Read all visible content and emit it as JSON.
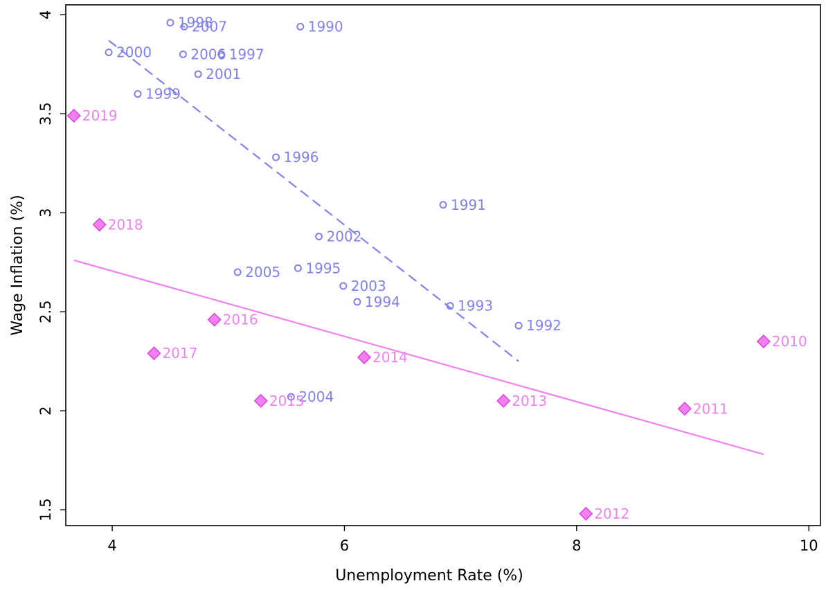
{
  "chart_data": {
    "type": "scatter",
    "title": "",
    "xlabel": "Unemployment Rate (%)",
    "ylabel": "Wage Inflation (%)",
    "xlim": [
      3.6,
      10.1
    ],
    "ylim": [
      1.42,
      4.05
    ],
    "xticks": [
      "4",
      "6",
      "8",
      "10"
    ],
    "yticks": [
      "1.5",
      "2",
      "2.5",
      "3",
      "3.5",
      "4"
    ],
    "grid": false,
    "legend": "none",
    "series": [
      {
        "marker": "circle",
        "color": "#8080f0",
        "points": [
          {
            "label": "1990",
            "x": 5.62,
            "y": 3.94
          },
          {
            "label": "1991",
            "x": 6.85,
            "y": 3.04
          },
          {
            "label": "1992",
            "x": 7.5,
            "y": 2.43
          },
          {
            "label": "1993",
            "x": 6.91,
            "y": 2.53
          },
          {
            "label": "1994",
            "x": 6.11,
            "y": 2.55
          },
          {
            "label": "1995",
            "x": 5.6,
            "y": 2.72
          },
          {
            "label": "1996",
            "x": 5.41,
            "y": 3.28
          },
          {
            "label": "1997",
            "x": 4.94,
            "y": 3.8
          },
          {
            "label": "1998",
            "x": 4.5,
            "y": 3.96
          },
          {
            "label": "1999",
            "x": 4.22,
            "y": 3.6
          },
          {
            "label": "2000",
            "x": 3.97,
            "y": 3.81
          },
          {
            "label": "2001",
            "x": 4.74,
            "y": 3.7
          },
          {
            "label": "2002",
            "x": 5.78,
            "y": 2.88
          },
          {
            "label": "2003",
            "x": 5.99,
            "y": 2.63
          },
          {
            "label": "2004",
            "x": 5.54,
            "y": 2.07
          },
          {
            "label": "2005",
            "x": 5.08,
            "y": 2.7
          },
          {
            "label": "2006",
            "x": 4.61,
            "y": 3.8
          },
          {
            "label": "2007",
            "x": 4.62,
            "y": 3.94
          }
        ],
        "trendline": {
          "style": "dashed",
          "x": [
            3.97,
            7.5
          ],
          "y": [
            3.87,
            2.25
          ]
        }
      },
      {
        "marker": "diamond",
        "color": "#f080f0",
        "points": [
          {
            "label": "2010",
            "x": 9.61,
            "y": 2.35
          },
          {
            "label": "2011",
            "x": 8.93,
            "y": 2.01
          },
          {
            "label": "2012",
            "x": 8.08,
            "y": 1.48
          },
          {
            "label": "2013",
            "x": 7.37,
            "y": 2.05
          },
          {
            "label": "2014",
            "x": 6.17,
            "y": 2.27
          },
          {
            "label": "2015",
            "x": 5.28,
            "y": 2.05
          },
          {
            "label": "2016",
            "x": 4.88,
            "y": 2.46
          },
          {
            "label": "2017",
            "x": 4.36,
            "y": 2.29
          },
          {
            "label": "2018",
            "x": 3.89,
            "y": 2.94
          },
          {
            "label": "2019",
            "x": 3.67,
            "y": 3.49
          }
        ],
        "trendline": {
          "style": "solid",
          "x": [
            3.67,
            9.61
          ],
          "y": [
            2.76,
            1.78
          ]
        }
      }
    ]
  }
}
